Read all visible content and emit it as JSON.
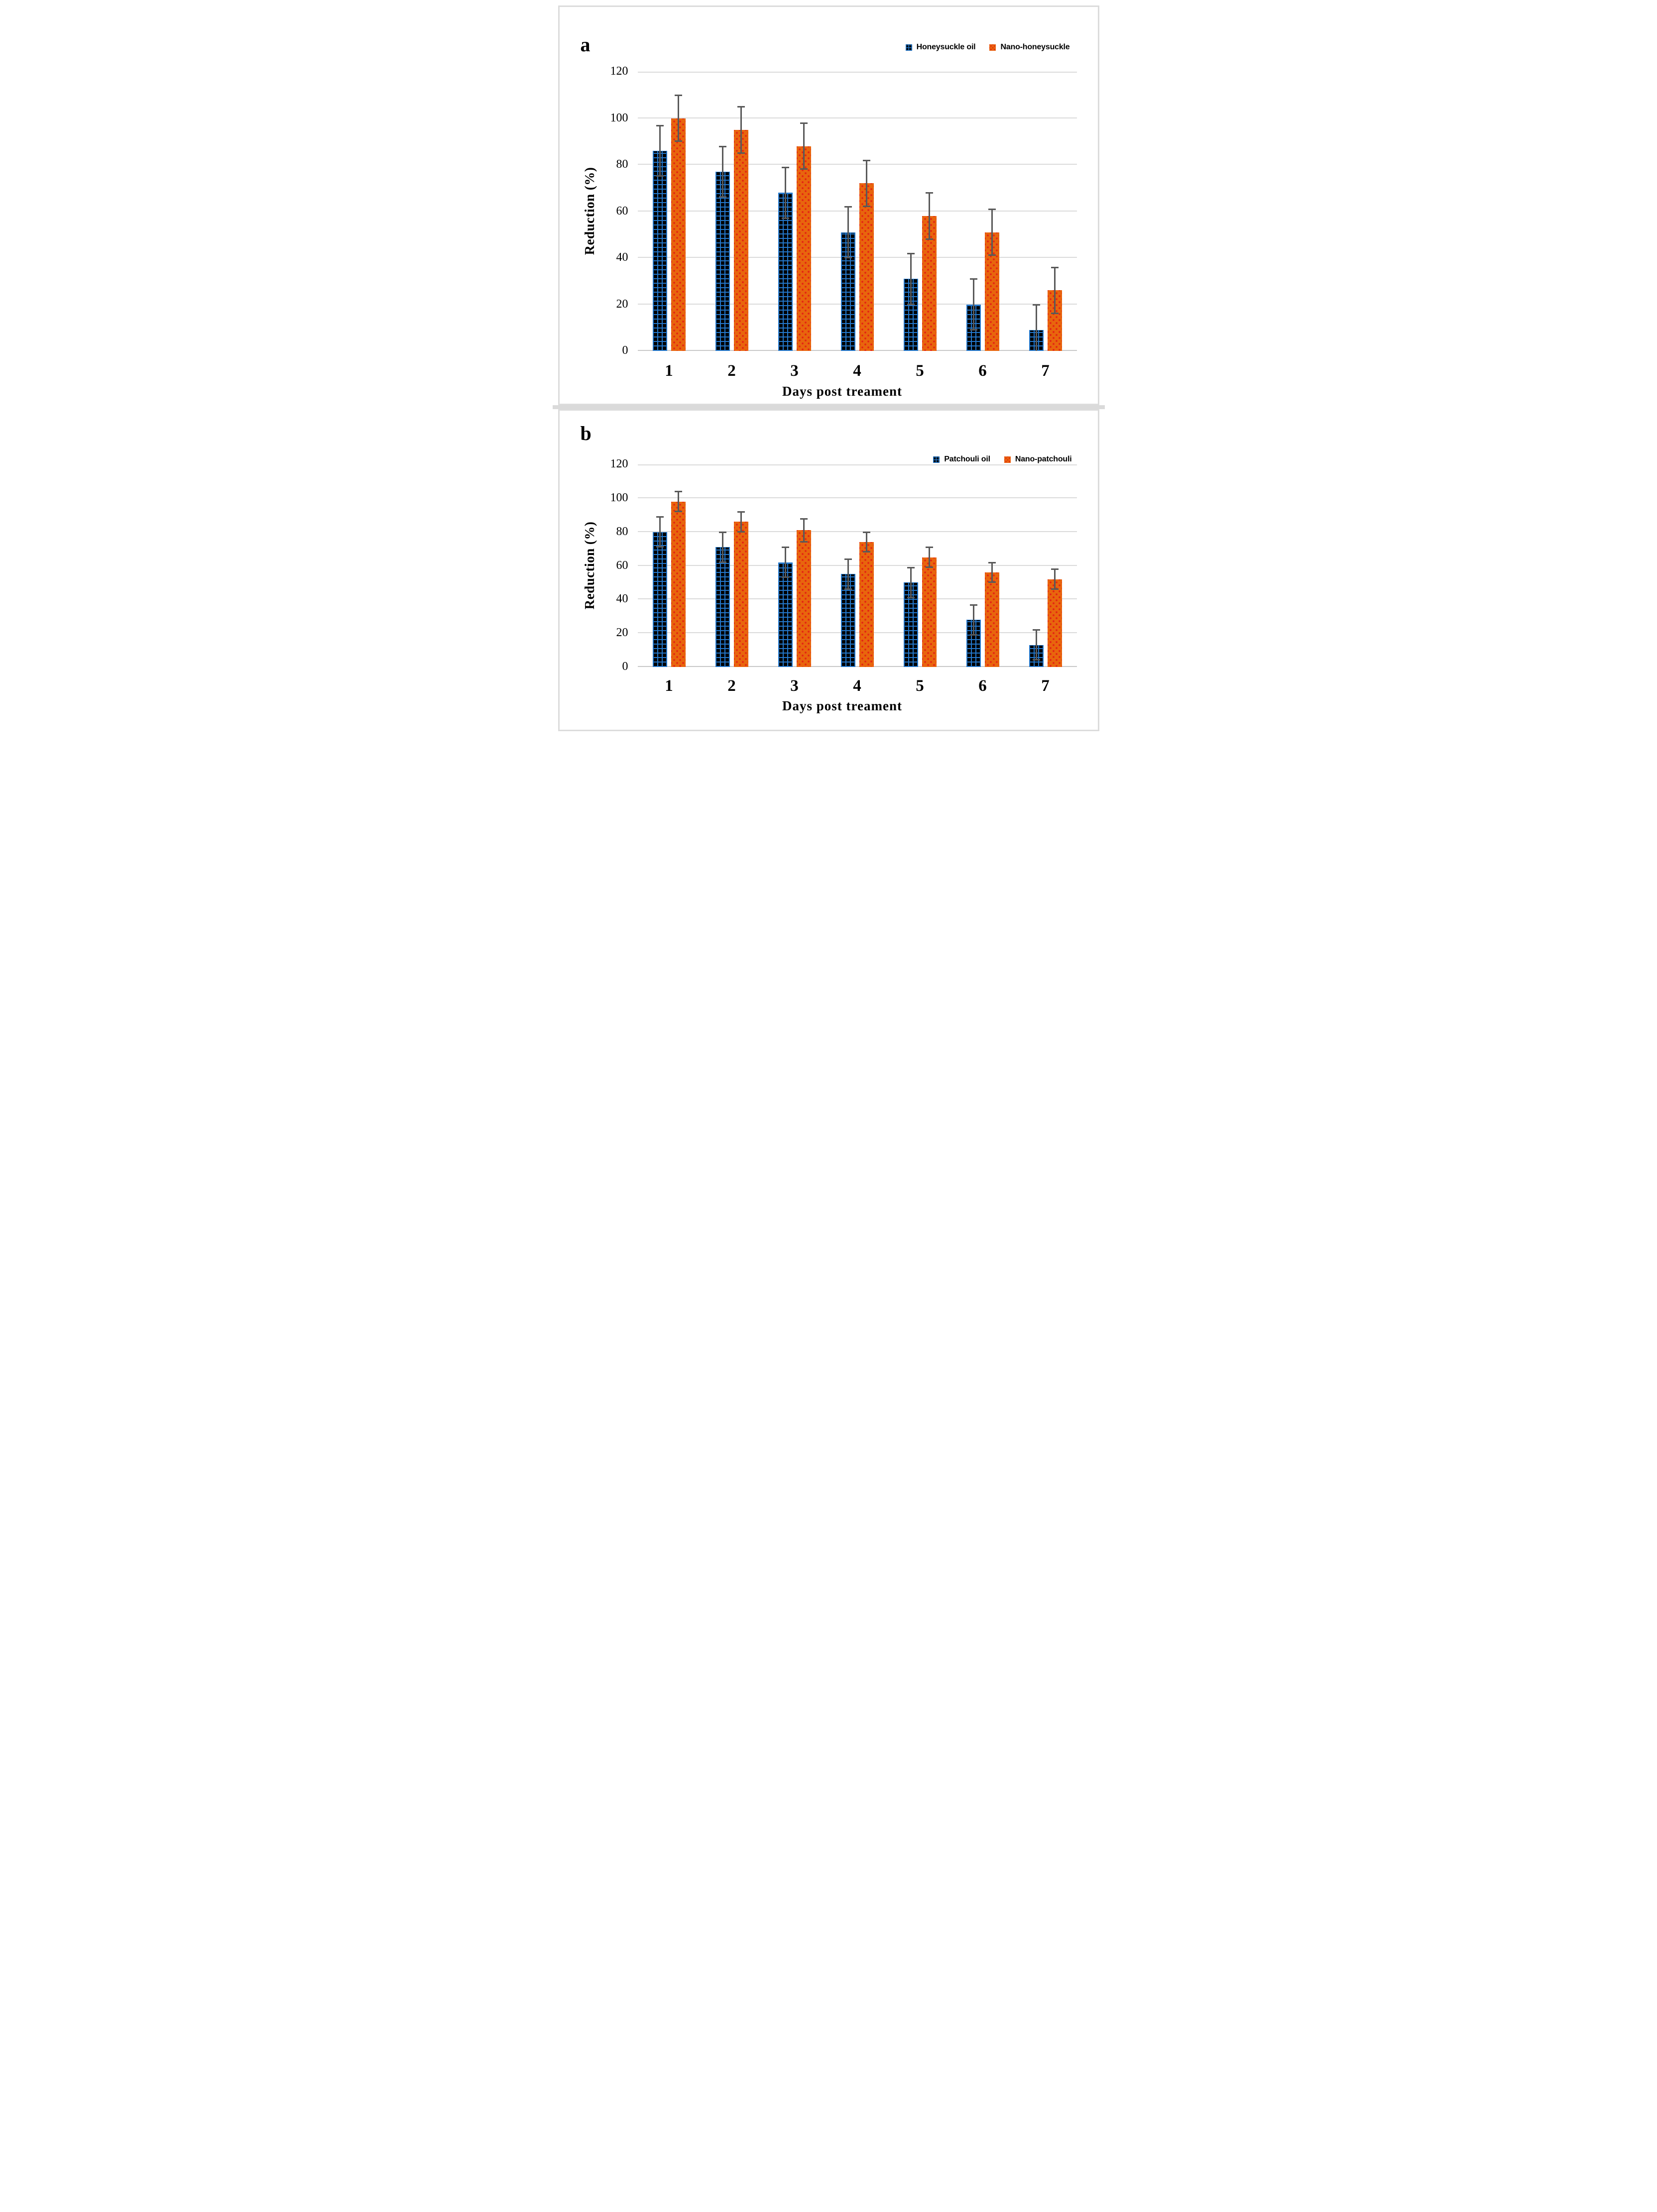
{
  "figure": {
    "panel_count": 2,
    "colors": {
      "bar_blue": "#2478CC",
      "bar_blue_fill": "#000000",
      "bar_orange": "#E8650D",
      "dot_red": "#E42313",
      "error_bar": "#595959",
      "gridline": "#DBDBDB",
      "panel_border": "#DCDCDC"
    }
  },
  "chart_data": [
    {
      "type": "bar",
      "panel_label": "a",
      "title": "",
      "categories": [
        "1",
        "2",
        "3",
        "4",
        "5",
        "6",
        "7"
      ],
      "series": [
        {
          "name": "Honeysuckle oil",
          "values": [
            86,
            77,
            68,
            51,
            31,
            20,
            9
          ],
          "errors": [
            11,
            11,
            11,
            11,
            11,
            11,
            11
          ],
          "color": "#2478CC",
          "pattern": "blue-grid"
        },
        {
          "name": "Nano-honeysuckle",
          "values": [
            100,
            95,
            88,
            72,
            58,
            51,
            26
          ],
          "errors": [
            10,
            10,
            10,
            10,
            10,
            10,
            10
          ],
          "color": "#E8650D",
          "pattern": "orange-dots"
        }
      ],
      "xlabel": "Days post treament",
      "ylabel": "Reduction (%)",
      "ylim": [
        0,
        120
      ],
      "ytick_step": 20,
      "grid": true,
      "legend_position": "top-right"
    },
    {
      "type": "bar",
      "panel_label": "b",
      "title": "",
      "categories": [
        "1",
        "2",
        "3",
        "4",
        "5",
        "6",
        "7"
      ],
      "series": [
        {
          "name": "Patchouli oil",
          "values": [
            80,
            71,
            62,
            55,
            50,
            28,
            13
          ],
          "errors": [
            9,
            9,
            9,
            9,
            9,
            9,
            9
          ],
          "color": "#2478CC",
          "pattern": "blue-grid"
        },
        {
          "name": "Nano-patchouli",
          "values": [
            98,
            86,
            81,
            74,
            65,
            56,
            52
          ],
          "errors": [
            6,
            6,
            7,
            6,
            6,
            6,
            6
          ],
          "color": "#E8650D",
          "pattern": "orange-dots"
        }
      ],
      "xlabel": "Days post treament",
      "ylabel": "Reduction (%)",
      "ylim": [
        0,
        120
      ],
      "ytick_step": 20,
      "grid": true,
      "legend_position": "top-right"
    }
  ]
}
